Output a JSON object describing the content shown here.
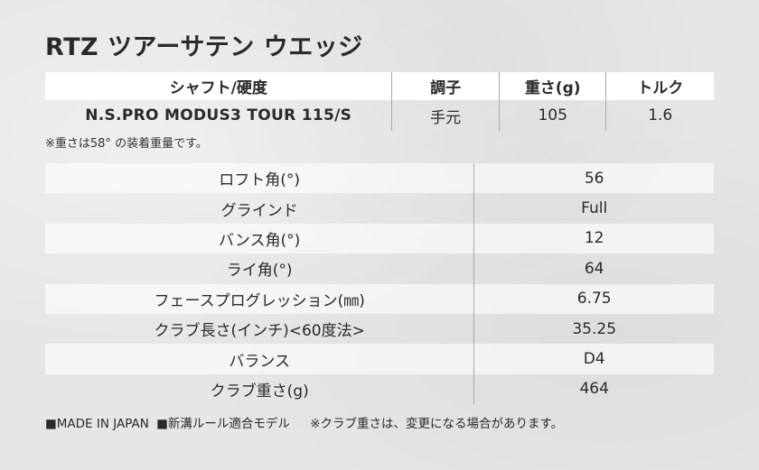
{
  "title": "RTZ ツアーサテン ウエッジ",
  "spec_table": {
    "headers": [
      "シャフト/硬度",
      "調子",
      "重さ(g)",
      "トルク"
    ],
    "row": [
      "N.S.PRO MODUS3 TOUR 115/S",
      "手元",
      "105",
      "1.6"
    ]
  },
  "note_weight": "※重さは58° の装着重量です。",
  "details": [
    {
      "label": "ロフト角(°)",
      "value": "56"
    },
    {
      "label": "グラインド",
      "value": "Full"
    },
    {
      "label": "バンス角(°)",
      "value": "12"
    },
    {
      "label": "ライ角(°)",
      "value": "64"
    },
    {
      "label": "フェースプログレッション(㎜)",
      "value": "6.75"
    },
    {
      "label": "クラブ長さ(インチ)<60度法>",
      "value": "35.25"
    },
    {
      "label": "バランス",
      "value": "D4"
    },
    {
      "label": "クラブ重さ(g)",
      "value": "464"
    }
  ],
  "footer": {
    "made_in": "■MADE IN JAPAN",
    "rule": "■新溝ルール適合モデル",
    "note": "※クラブ重さは、変更になる場合があります。"
  }
}
